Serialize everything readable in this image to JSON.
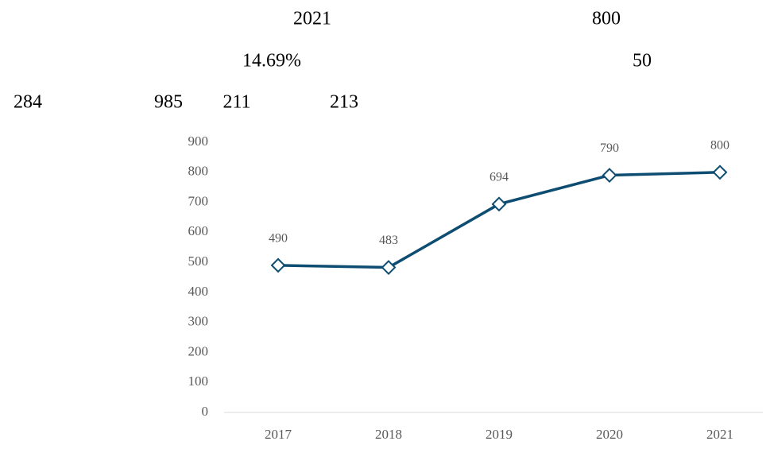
{
  "text_fragments": [
    "2021",
    "800",
    "14.69%",
    "50",
    "284",
    "985",
    "211",
    "213"
  ],
  "chart_data": {
    "type": "line",
    "categories": [
      "2017",
      "2018",
      "2019",
      "2020",
      "2021"
    ],
    "values": [
      490,
      483,
      694,
      790,
      800
    ],
    "color": "#0e4d72",
    "marker": "diamond",
    "ylim": [
      0,
      900
    ],
    "yticks": [
      0,
      100,
      200,
      300,
      400,
      500,
      600,
      700,
      800,
      900
    ],
    "grid": false
  }
}
